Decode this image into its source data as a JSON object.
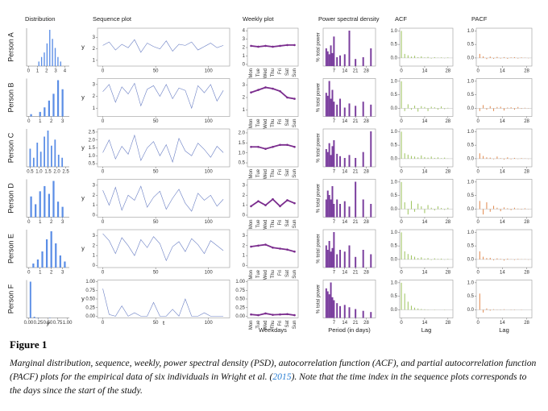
{
  "figure": {
    "headers": [
      "Distribution",
      "Sequence plot",
      "Weekly plot",
      "Power spectral density",
      "ACF",
      "PACF"
    ],
    "seq_ylabel": "y",
    "psd_ylabel": "% total power",
    "axis_titles": {
      "dist": "y",
      "seq": "t",
      "weekly": "Weekdays",
      "psd": "Period (in days)",
      "acf": "Lag",
      "pacf": "Lag"
    },
    "seq_t": [
      0,
      6,
      12,
      18,
      24,
      30,
      36,
      42,
      48,
      54,
      60,
      66,
      72,
      78,
      84,
      90,
      96,
      102,
      108,
      114
    ],
    "seq_xlim": [
      -5,
      120
    ],
    "seq_xticks": [
      0,
      50,
      100
    ],
    "weekdays": [
      "Mon",
      "Tue",
      "Wed",
      "Thu",
      "Fri",
      "Sat",
      "Sun"
    ],
    "psd_period": [
      2,
      3,
      4,
      5,
      6,
      7,
      9,
      11,
      14,
      17,
      21,
      26,
      31
    ],
    "psd_xlim": [
      0,
      34
    ],
    "psd_xticks": [
      7,
      14,
      21,
      28
    ],
    "lags": [
      0,
      2,
      4,
      6,
      8,
      10,
      12,
      14,
      16,
      18,
      20,
      22,
      24,
      26,
      28
    ],
    "pacf_lags": [
      1,
      3,
      5,
      7,
      9,
      11,
      13,
      15,
      17,
      19,
      21,
      23,
      25,
      27,
      29
    ],
    "lag_xlim": [
      -1,
      31
    ],
    "lag_xticks": [
      0,
      14,
      28
    ],
    "cf_ylim": [
      -0.3,
      1.1
    ],
    "cf_yticks": [
      {
        "value": 0,
        "label": "0.0"
      },
      0.5,
      {
        "value": 1,
        "label": "1.0"
      }
    ],
    "colors": {
      "hist": "#5b8ee6",
      "seq": "#6a7fc4",
      "weekly": "#7b2d8e",
      "psd": "#7b3f9e",
      "acf": "#9bc25a",
      "pacf": "#e0864a"
    },
    "persons": [
      {
        "label": "Person A",
        "dist": {
          "xlim": [
            -0.2,
            4.5
          ],
          "xticks": [
            0,
            1,
            2,
            3,
            4
          ],
          "bins": [
            1.0,
            1.3,
            1.6,
            1.9,
            2.2,
            2.5,
            2.8,
            3.1,
            3.4,
            3.7
          ],
          "counts": [
            2,
            4,
            6,
            10,
            16,
            12,
            8,
            4,
            2
          ]
        },
        "seq": {
          "ylim": [
            0.5,
            3.8
          ],
          "yticks": [
            1,
            2,
            3
          ],
          "values": [
            2.3,
            2.6,
            1.9,
            2.4,
            2.1,
            2.8,
            1.7,
            2.5,
            2.2,
            2.0,
            2.7,
            1.8,
            2.4,
            2.3,
            2.6,
            1.9,
            2.2,
            2.5,
            2.1,
            2.3
          ]
        },
        "weekly": {
          "ylim": [
            -0.2,
            4.3
          ],
          "yticks": [
            0,
            1,
            2,
            3,
            4
          ],
          "mean": [
            2.2,
            2.1,
            2.2,
            2.1,
            2.2,
            2.3,
            2.3
          ]
        },
        "psd": [
          30,
          25,
          20,
          35,
          22,
          50,
          15,
          18,
          20,
          60,
          12,
          15,
          30
        ],
        "acf": [
          1.0,
          0.15,
          0.1,
          0.05,
          0.08,
          0.03,
          0.06,
          0.02,
          0.04,
          -0.02,
          0.03,
          0.01,
          0.02,
          -0.01,
          0.02
        ],
        "pacf": [
          0.15,
          0.06,
          -0.04,
          0.05,
          -0.03,
          0.04,
          -0.02,
          0.03,
          -0.03,
          0.02,
          0.03,
          -0.02,
          0.02,
          0.01,
          -0.01
        ]
      },
      {
        "label": "Person B",
        "dist": {
          "xlim": [
            -0.2,
            3.6
          ],
          "xticks": [
            0,
            1,
            2,
            3
          ],
          "bins": [
            0,
            0.4,
            0.8,
            1.2,
            1.6,
            2.0,
            2.4,
            2.8,
            3.2
          ],
          "counts": [
            1,
            0,
            2,
            4,
            7,
            10,
            16,
            12
          ]
        },
        "seq": {
          "ylim": [
            0.3,
            3.5
          ],
          "yticks": [
            1,
            2,
            3
          ],
          "values": [
            2.4,
            3.0,
            1.5,
            2.8,
            2.2,
            3.1,
            1.2,
            2.6,
            2.9,
            2.0,
            3.0,
            1.8,
            2.7,
            2.5,
            1.0,
            2.9,
            2.3,
            3.0,
            1.6,
            2.5
          ]
        },
        "weekly": {
          "ylim": [
            0.5,
            3.5
          ],
          "yticks": [
            1,
            2,
            3
          ],
          "mean": [
            2.4,
            2.6,
            2.8,
            2.7,
            2.5,
            2.0,
            1.9
          ]
        },
        "psd": [
          40,
          35,
          60,
          30,
          45,
          25,
          20,
          30,
          15,
          22,
          18,
          25,
          20
        ],
        "acf": [
          1.0,
          -0.1,
          0.15,
          -0.05,
          0.1,
          -0.12,
          0.08,
          0.05,
          -0.1,
          0.06,
          0.04,
          -0.05,
          0.07,
          -0.03,
          0.02
        ],
        "pacf": [
          -0.1,
          0.12,
          -0.05,
          0.08,
          -0.1,
          0.05,
          0.06,
          -0.08,
          0.03,
          0.04,
          -0.05,
          0.05,
          -0.02,
          0.02,
          0.01
        ]
      },
      {
        "label": "Person C",
        "dist": {
          "xlim": [
            0.3,
            2.7
          ],
          "xticks": [
            0.5,
            {
              "value": 1,
              "label": "1.0"
            },
            1.5,
            {
              "value": 2,
              "label": "2.0"
            },
            2.5
          ],
          "bins": [
            0.4,
            0.6,
            0.8,
            1.0,
            1.2,
            1.4,
            1.6,
            1.8,
            2.0,
            2.2,
            2.4
          ],
          "counts": [
            6,
            3,
            8,
            5,
            10,
            12,
            7,
            9,
            4,
            3
          ]
        },
        "seq": {
          "ylim": [
            0.3,
            2.7
          ],
          "yticks": [
            0.5,
            {
              "value": 1,
              "label": "1.0"
            },
            1.5,
            {
              "value": 2,
              "label": "2.0"
            },
            2.5
          ],
          "values": [
            1.2,
            2.0,
            0.8,
            1.6,
            1.1,
            2.3,
            0.7,
            1.5,
            1.9,
            1.0,
            1.7,
            0.6,
            2.1,
            1.3,
            1.0,
            1.8,
            1.4,
            0.9,
            1.6,
            1.2
          ]
        },
        "weekly": {
          "ylim": [
            0.3,
            2.2
          ],
          "yticks": [
            0.5,
            {
              "value": 1,
              "label": "1.0"
            },
            1.5,
            {
              "value": 2,
              "label": "2.0"
            }
          ],
          "mean": [
            1.3,
            1.3,
            1.2,
            1.3,
            1.4,
            1.4,
            1.3
          ]
        },
        "psd": [
          30,
          25,
          40,
          20,
          35,
          45,
          22,
          18,
          15,
          20,
          15,
          25,
          60
        ],
        "acf": [
          1.0,
          0.2,
          0.15,
          0.1,
          0.08,
          0.05,
          0.12,
          0.06,
          0.04,
          0.08,
          0.03,
          0.05,
          0.02,
          0.04,
          0.01
        ],
        "pacf": [
          0.2,
          0.1,
          0.05,
          0.04,
          -0.02,
          0.08,
          0.02,
          -0.03,
          0.05,
          -0.02,
          0.03,
          -0.01,
          0.02,
          0.01,
          -0.01
        ]
      },
      {
        "label": "Person D",
        "dist": {
          "xlim": [
            -0.2,
            3.6
          ],
          "xticks": [
            0,
            1,
            2,
            3
          ],
          "bins": [
            0,
            0.4,
            0.8,
            1.2,
            1.6,
            2.0,
            2.4,
            2.8,
            3.2
          ],
          "counts": [
            8,
            5,
            10,
            12,
            9,
            14,
            6,
            4
          ]
        },
        "seq": {
          "ylim": [
            -0.2,
            3.6
          ],
          "yticks": [
            0,
            1,
            2,
            3
          ],
          "values": [
            2.5,
            1.0,
            2.8,
            0.5,
            2.0,
            1.5,
            2.9,
            0.8,
            1.8,
            2.4,
            0.6,
            1.7,
            2.6,
            1.2,
            0.4,
            2.2,
            1.5,
            2.0,
            0.9,
            1.6
          ]
        },
        "weekly": {
          "ylim": [
            -0.2,
            3.6
          ],
          "yticks": [
            0,
            1,
            2,
            3
          ],
          "mean": [
            0.9,
            1.4,
            1.0,
            1.6,
            0.9,
            1.5,
            1.2
          ]
        },
        "psd": [
          20,
          30,
          25,
          20,
          35,
          15,
          20,
          15,
          18,
          12,
          40,
          20,
          15
        ],
        "acf": [
          1.0,
          0.25,
          -0.2,
          0.3,
          -0.1,
          0.2,
          0.1,
          -0.15,
          0.15,
          0.05,
          -0.05,
          0.1,
          0.04,
          -0.03,
          0.05
        ],
        "pacf": [
          0.3,
          -0.2,
          0.25,
          -0.1,
          0.12,
          0.05,
          -0.08,
          0.06,
          0.03,
          -0.04,
          0.05,
          0.02,
          -0.02,
          0.03,
          0.01
        ]
      },
      {
        "label": "Person E",
        "dist": {
          "xlim": [
            -0.2,
            3.6
          ],
          "xticks": [
            0,
            1,
            2,
            3
          ],
          "bins": [
            0.2,
            0.6,
            1.0,
            1.4,
            1.8,
            2.2,
            2.6,
            3.0,
            3.4
          ],
          "counts": [
            2,
            4,
            8,
            14,
            18,
            12,
            6,
            3
          ]
        },
        "seq": {
          "ylim": [
            -0.2,
            3.6
          ],
          "yticks": [
            0,
            1,
            2,
            3
          ],
          "values": [
            3.2,
            2.5,
            1.2,
            2.8,
            2.0,
            1.0,
            2.6,
            1.8,
            2.9,
            2.2,
            0.5,
            1.9,
            2.4,
            1.4,
            2.7,
            2.1,
            1.2,
            2.5,
            2.0,
            1.5
          ]
        },
        "weekly": {
          "ylim": [
            -0.2,
            3.6
          ],
          "yticks": [
            0,
            1,
            2,
            3
          ],
          "mean": [
            1.9,
            2.0,
            2.1,
            1.8,
            1.7,
            1.6,
            1.4
          ]
        },
        "psd": [
          25,
          20,
          30,
          18,
          22,
          40,
          15,
          20,
          18,
          25,
          12,
          20,
          15
        ],
        "acf": [
          1.0,
          0.3,
          0.2,
          0.15,
          0.1,
          0.05,
          0.08,
          0.03,
          0.05,
          -0.02,
          0.04,
          0.02,
          0.03,
          -0.01,
          0.02
        ],
        "pacf": [
          0.3,
          0.1,
          0.05,
          0.06,
          -0.03,
          0.04,
          0.02,
          -0.04,
          0.03,
          0.01,
          -0.02,
          0.02,
          0.01,
          0.01,
          -0.01
        ]
      },
      {
        "label": "Person F",
        "dist": {
          "xlim": [
            -0.05,
            1.05
          ],
          "xticks": [
            {
              "value": 0,
              "label": "0.00"
            },
            0.25,
            {
              "value": 0.5,
              "label": "0.50"
            },
            0.75,
            {
              "value": 1,
              "label": "1.00"
            }
          ],
          "bins": [
            0,
            0.1,
            0.2,
            0.3,
            0.4,
            0.5,
            0.6,
            0.7,
            0.8,
            0.9,
            1.0
          ],
          "counts": [
            95,
            3,
            1,
            0,
            0,
            1,
            0,
            0,
            0,
            0
          ]
        },
        "seq": {
          "ylim": [
            -0.05,
            1.05
          ],
          "yticks": [
            {
              "value": 0,
              "label": "0.00"
            },
            0.25,
            {
              "value": 0.5,
              "label": "0.50"
            },
            0.75,
            {
              "value": 1,
              "label": "1.00"
            }
          ],
          "values": [
            0.8,
            0.05,
            0,
            0.3,
            0,
            0.1,
            0,
            0,
            0.4,
            0,
            0,
            0.2,
            0,
            0.5,
            0,
            0,
            0.1,
            0,
            0,
            0
          ]
        },
        "weekly": {
          "ylim": [
            -0.05,
            1.05
          ],
          "yticks": [
            {
              "value": 0,
              "label": "0.00"
            },
            0.25,
            {
              "value": 0.5,
              "label": "0.50"
            },
            0.75,
            {
              "value": 1,
              "label": "1.00"
            }
          ],
          "mean": [
            0.05,
            0.03,
            0.08,
            0.04,
            0.05,
            0.06,
            0.03
          ]
        },
        "psd": [
          50,
          45,
          40,
          60,
          35,
          30,
          25,
          20,
          22,
          18,
          15,
          12,
          10
        ],
        "acf": [
          1.0,
          0.6,
          0.3,
          0.15,
          0.08,
          0.05,
          0.03,
          0.02,
          0.01,
          0,
          0.01,
          0,
          0,
          0.01,
          0
        ],
        "pacf": [
          0.6,
          -0.1,
          0.05,
          -0.03,
          0.02,
          0.01,
          -0.01,
          0.02,
          0,
          0.01,
          -0.01,
          0,
          0.01,
          0,
          0
        ]
      }
    ]
  },
  "caption": {
    "label": "Figure 1",
    "before": "Marginal distribution, sequence, weekly, power spectral density (PSD), autocorrelation function (ACF), and partial autocorrelation function (PACF) plots for the empirical data of six individuals in Wright et al. (",
    "link": "2015",
    "after": "). Note that the time index in the sequence plots corresponds to the days since the start of the study."
  }
}
